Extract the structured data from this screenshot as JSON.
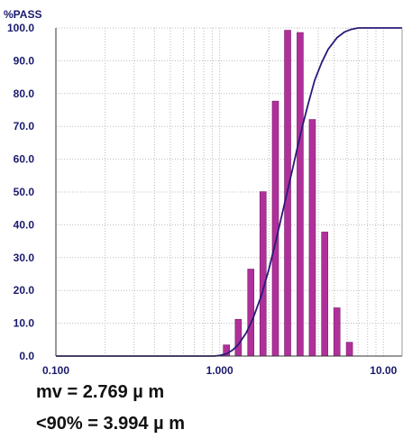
{
  "chart_data": {
    "type": "bar",
    "title": "",
    "ylabel": "%PASS",
    "xlabel": "",
    "x_scale": "log",
    "xlim": [
      0.1,
      13.0
    ],
    "ylim": [
      0,
      100
    ],
    "grid": true,
    "x_tick_labels": [
      {
        "value": 0.1,
        "label": "0.100"
      },
      {
        "value": 1.0,
        "label": "1.000"
      },
      {
        "value": 10.0,
        "label": "10.00"
      }
    ],
    "y_tick_labels": [
      "0.0",
      "10.0",
      "20.0",
      "30.0",
      "40.0",
      "50.0",
      "60.0",
      "70.0",
      "80.0",
      "90.0",
      "100.0"
    ],
    "colors": {
      "bars": "#b0309a",
      "bar_edge": "#7a1c6b",
      "curve": "#2a1a7a",
      "grid": "#bcbcbc",
      "axis_text": "#1a1a6e"
    },
    "series": [
      {
        "type": "bar",
        "x": [
          1.1,
          1.3,
          1.55,
          1.84,
          2.19,
          2.6,
          3.1,
          3.68,
          4.38,
          5.2,
          6.2
        ],
        "values": [
          3.4,
          11.2,
          26.5,
          50.1,
          77.7,
          99.3,
          98.6,
          72.1,
          37.8,
          14.7,
          4.2
        ]
      },
      {
        "type": "line",
        "x": [
          0.1,
          0.93,
          1.0,
          1.1,
          1.2,
          1.3,
          1.45,
          1.6,
          1.8,
          2.0,
          2.2,
          2.4,
          2.6,
          2.8,
          3.0,
          3.2,
          3.5,
          3.8,
          4.2,
          4.6,
          5.2,
          5.8,
          6.3,
          7.0,
          8.0,
          13.0
        ],
        "values": [
          0,
          0,
          0.2,
          0.7,
          1.8,
          3.5,
          7.0,
          11.5,
          18.5,
          26.5,
          35.0,
          43.0,
          50.5,
          57.5,
          64.0,
          70.0,
          77.5,
          84.0,
          89.5,
          93.5,
          97.0,
          98.8,
          99.5,
          100,
          100,
          100
        ]
      }
    ]
  },
  "stats": {
    "mv": "mv = 2.769 µ m",
    "p90": "<90% = 3.994 µ m"
  }
}
